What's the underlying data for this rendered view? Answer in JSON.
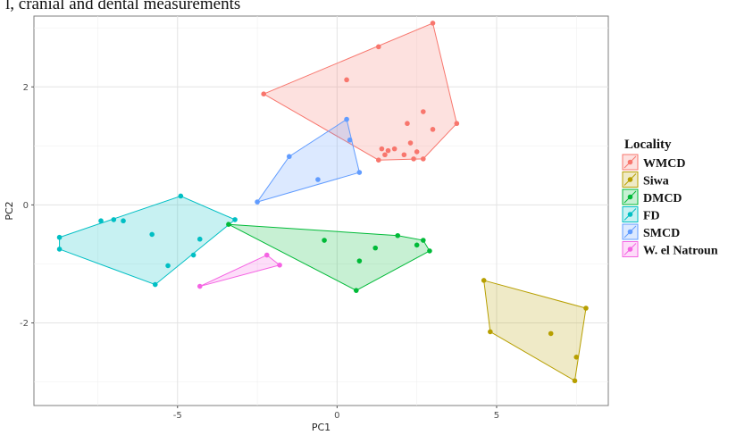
{
  "caption": "l, cranial and dental measurements",
  "chart_data": {
    "type": "scatter",
    "xlabel": "PC1",
    "ylabel": "PC2",
    "xlim": [
      -9.5,
      8.5
    ],
    "ylim": [
      -3.4,
      3.2
    ],
    "xticks": [
      -5,
      0,
      5
    ],
    "yticks": [
      -2,
      0,
      2
    ],
    "grid": true,
    "legend": {
      "title": "Locality",
      "position": "right"
    },
    "series": [
      {
        "name": "WMCD",
        "color": "#F8766D",
        "points": [
          [
            -2.3,
            1.88
          ],
          [
            0.3,
            2.12
          ],
          [
            1.3,
            2.68
          ],
          [
            3.0,
            3.08
          ],
          [
            3.75,
            1.38
          ],
          [
            2.7,
            1.58
          ],
          [
            2.2,
            1.38
          ],
          [
            3.0,
            1.28
          ],
          [
            1.4,
            0.95
          ],
          [
            1.6,
            0.92
          ],
          [
            1.8,
            0.95
          ],
          [
            2.1,
            0.85
          ],
          [
            2.3,
            1.05
          ],
          [
            2.5,
            0.9
          ],
          [
            2.7,
            0.78
          ],
          [
            1.3,
            0.76
          ],
          [
            2.4,
            0.78
          ],
          [
            1.5,
            0.85
          ]
        ],
        "hull": [
          [
            -2.3,
            1.88
          ],
          [
            3.0,
            3.08
          ],
          [
            3.75,
            1.38
          ],
          [
            2.7,
            0.78
          ],
          [
            1.3,
            0.76
          ]
        ]
      },
      {
        "name": "Siwa",
        "color": "#B79F00",
        "points": [
          [
            4.6,
            -1.28
          ],
          [
            7.8,
            -1.75
          ],
          [
            6.7,
            -2.18
          ],
          [
            7.5,
            -2.58
          ],
          [
            7.45,
            -2.98
          ],
          [
            4.8,
            -2.15
          ]
        ],
        "hull": [
          [
            4.6,
            -1.28
          ],
          [
            7.8,
            -1.75
          ],
          [
            7.45,
            -2.98
          ],
          [
            4.8,
            -2.15
          ]
        ]
      },
      {
        "name": "DMCD",
        "color": "#00BA38",
        "points": [
          [
            -3.4,
            -0.33
          ],
          [
            -0.4,
            -0.6
          ],
          [
            1.9,
            -0.52
          ],
          [
            2.7,
            -0.6
          ],
          [
            2.9,
            -0.78
          ],
          [
            2.5,
            -0.68
          ],
          [
            1.2,
            -0.73
          ],
          [
            0.7,
            -0.95
          ],
          [
            0.6,
            -1.45
          ]
        ],
        "hull": [
          [
            -3.4,
            -0.33
          ],
          [
            1.9,
            -0.52
          ],
          [
            2.7,
            -0.6
          ],
          [
            2.9,
            -0.78
          ],
          [
            0.6,
            -1.45
          ]
        ]
      },
      {
        "name": "FD",
        "color": "#00BFC4",
        "points": [
          [
            -8.7,
            -0.55
          ],
          [
            -8.7,
            -0.75
          ],
          [
            -7.4,
            -0.27
          ],
          [
            -7.0,
            -0.25
          ],
          [
            -6.7,
            -0.27
          ],
          [
            -4.9,
            0.15
          ],
          [
            -3.2,
            -0.25
          ],
          [
            -5.8,
            -0.5
          ],
          [
            -4.3,
            -0.58
          ],
          [
            -4.5,
            -0.85
          ],
          [
            -5.3,
            -1.03
          ],
          [
            -5.7,
            -1.35
          ]
        ],
        "hull": [
          [
            -8.7,
            -0.55
          ],
          [
            -4.9,
            0.15
          ],
          [
            -3.2,
            -0.25
          ],
          [
            -5.7,
            -1.35
          ],
          [
            -8.7,
            -0.75
          ]
        ]
      },
      {
        "name": "SMCD",
        "color": "#619CFF",
        "points": [
          [
            -2.5,
            0.05
          ],
          [
            -1.5,
            0.82
          ],
          [
            0.3,
            1.45
          ],
          [
            0.4,
            1.1
          ],
          [
            -0.6,
            0.43
          ],
          [
            0.7,
            0.55
          ]
        ],
        "hull": [
          [
            -2.5,
            0.05
          ],
          [
            -1.5,
            0.82
          ],
          [
            0.3,
            1.45
          ],
          [
            0.7,
            0.55
          ]
        ]
      },
      {
        "name": "W. el Natroun",
        "color": "#F564E3",
        "points": [
          [
            -4.3,
            -1.38
          ],
          [
            -2.2,
            -0.85
          ],
          [
            -1.8,
            -1.02
          ]
        ],
        "hull": [
          [
            -4.3,
            -1.38
          ],
          [
            -2.2,
            -0.85
          ],
          [
            -1.8,
            -1.02
          ]
        ]
      }
    ]
  }
}
